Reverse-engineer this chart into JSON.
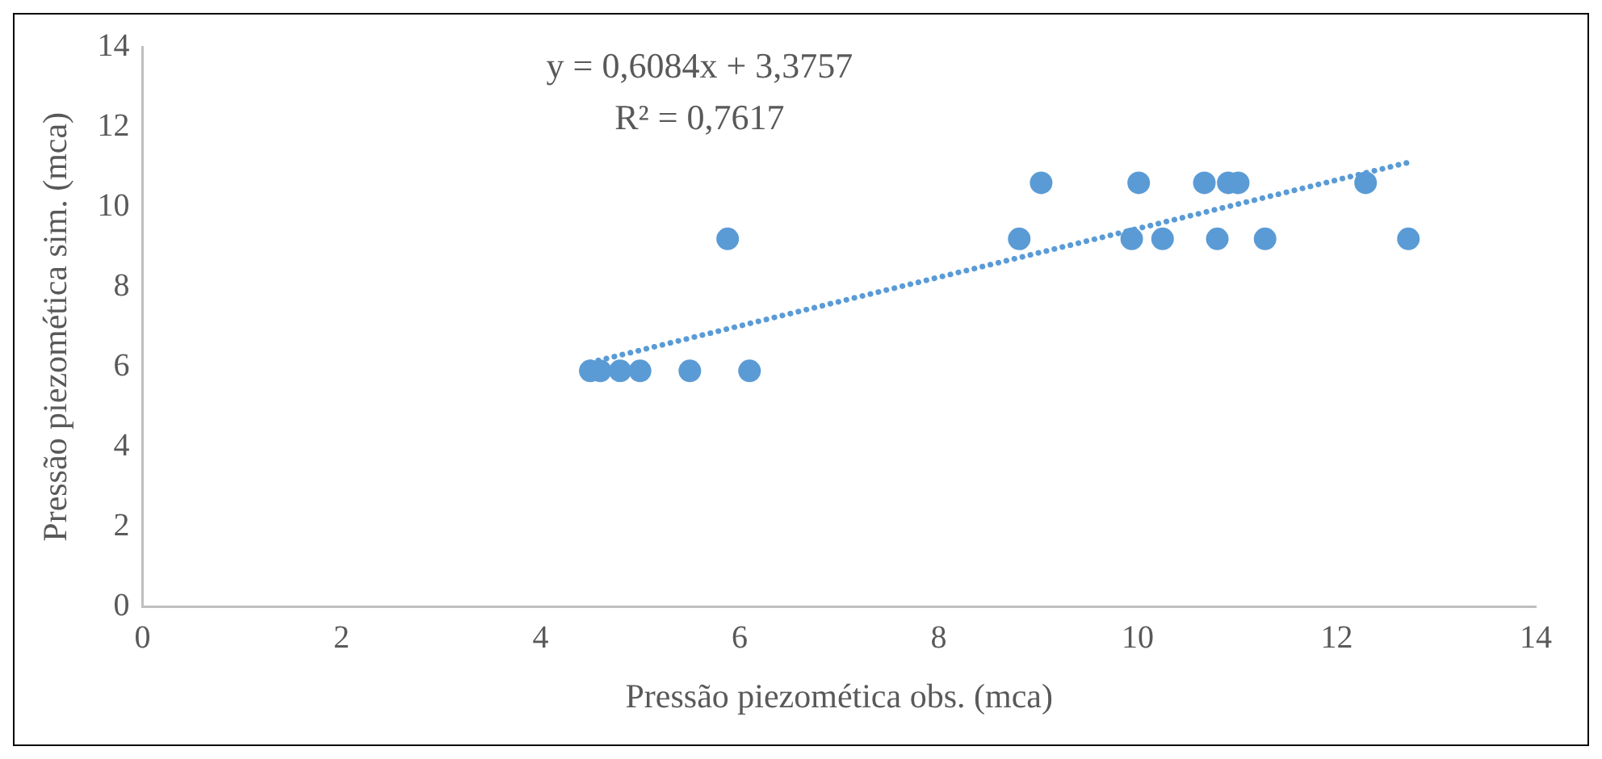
{
  "chart_data": {
    "type": "scatter",
    "xlabel": "Pressão piezomética obs. (mca)",
    "ylabel": "Pressão piezomética sim. (mca)",
    "xlim": [
      0,
      14
    ],
    "xticks": [
      0,
      2,
      4,
      6,
      8,
      10,
      12,
      14
    ],
    "ylim": [
      0,
      14
    ],
    "yticks": [
      0,
      2,
      4,
      6,
      8,
      10,
      12,
      14
    ],
    "grid": false,
    "legend": false,
    "marker": "circle",
    "annotations": [
      "y = 0,6084x + 3,3757",
      "R² = 0,7617"
    ],
    "series": [
      {
        "type": "scatter",
        "color": "#5b9bd5",
        "x": [
          4.5,
          4.6,
          4.8,
          5.0,
          5.5,
          6.1,
          5.88,
          8.81,
          9.94,
          10.25,
          10.8,
          11.28,
          12.72,
          9.03,
          10.01,
          10.67,
          10.91,
          11.01,
          12.29
        ],
        "values": [
          5.9,
          5.9,
          5.9,
          5.9,
          5.9,
          5.9,
          9.2,
          9.2,
          9.2,
          9.2,
          9.2,
          9.2,
          9.2,
          10.6,
          10.6,
          10.6,
          10.6,
          10.6,
          10.6
        ]
      },
      {
        "type": "line",
        "color": "#5b9bd5",
        "line_style": "dotted",
        "marker": "none",
        "x": [
          4.5,
          12.72
        ],
        "values": [
          6.11,
          11.11
        ]
      }
    ]
  }
}
